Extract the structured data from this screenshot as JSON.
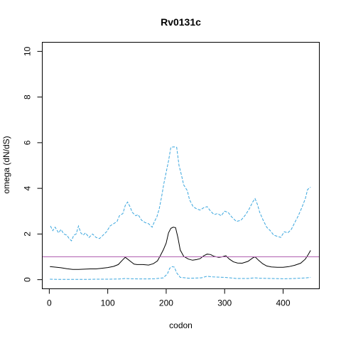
{
  "chart_data": {
    "type": "line",
    "title": "Rv0131c",
    "xlabel": "codon",
    "ylabel": "omega (dN/dS)",
    "xlim": [
      -12,
      462
    ],
    "ylim": [
      -0.4,
      10.4
    ],
    "x_ticks": [
      0,
      100,
      200,
      300,
      400
    ],
    "y_ticks": [
      0,
      2,
      4,
      6,
      8,
      10
    ],
    "grid": false,
    "reference_line": {
      "y": 1,
      "color": "#b05fb0"
    },
    "series": [
      {
        "role": "estimate",
        "color": "#000000",
        "dash": "solid",
        "points": [
          [
            1,
            0.57
          ],
          [
            10,
            0.55
          ],
          [
            20,
            0.52
          ],
          [
            30,
            0.48
          ],
          [
            40,
            0.45
          ],
          [
            50,
            0.45
          ],
          [
            60,
            0.46
          ],
          [
            70,
            0.47
          ],
          [
            80,
            0.47
          ],
          [
            90,
            0.5
          ],
          [
            100,
            0.53
          ],
          [
            110,
            0.58
          ],
          [
            118,
            0.66
          ],
          [
            125,
            0.85
          ],
          [
            130,
            0.98
          ],
          [
            134,
            0.9
          ],
          [
            140,
            0.78
          ],
          [
            145,
            0.68
          ],
          [
            150,
            0.66
          ],
          [
            160,
            0.66
          ],
          [
            170,
            0.64
          ],
          [
            178,
            0.7
          ],
          [
            185,
            0.82
          ],
          [
            190,
            1.05
          ],
          [
            195,
            1.3
          ],
          [
            200,
            1.6
          ],
          [
            204,
            2.05
          ],
          [
            208,
            2.25
          ],
          [
            212,
            2.3
          ],
          [
            216,
            2.28
          ],
          [
            220,
            1.85
          ],
          [
            224,
            1.3
          ],
          [
            230,
            1.02
          ],
          [
            238,
            0.9
          ],
          [
            245,
            0.85
          ],
          [
            252,
            0.88
          ],
          [
            258,
            0.92
          ],
          [
            264,
            1.04
          ],
          [
            270,
            1.12
          ],
          [
            276,
            1.1
          ],
          [
            282,
            1.02
          ],
          [
            290,
            0.98
          ],
          [
            296,
            1.0
          ],
          [
            302,
            1.05
          ],
          [
            308,
            0.9
          ],
          [
            315,
            0.78
          ],
          [
            322,
            0.73
          ],
          [
            330,
            0.72
          ],
          [
            340,
            0.8
          ],
          [
            348,
            0.95
          ],
          [
            352,
            1.0
          ],
          [
            358,
            0.85
          ],
          [
            365,
            0.7
          ],
          [
            372,
            0.6
          ],
          [
            380,
            0.56
          ],
          [
            390,
            0.54
          ],
          [
            400,
            0.54
          ],
          [
            410,
            0.57
          ],
          [
            420,
            0.63
          ],
          [
            430,
            0.72
          ],
          [
            438,
            0.9
          ],
          [
            443,
            1.1
          ],
          [
            447,
            1.28
          ]
        ]
      },
      {
        "role": "upper",
        "color": "#3aa6de",
        "dash": "dashed",
        "points": [
          [
            2,
            2.35
          ],
          [
            6,
            2.15
          ],
          [
            10,
            2.3
          ],
          [
            16,
            2.05
          ],
          [
            20,
            2.2
          ],
          [
            25,
            2.0
          ],
          [
            30,
            1.95
          ],
          [
            34,
            1.8
          ],
          [
            38,
            1.7
          ],
          [
            42,
            1.95
          ],
          [
            46,
            2.0
          ],
          [
            50,
            2.35
          ],
          [
            54,
            2.05
          ],
          [
            58,
            1.95
          ],
          [
            62,
            2.05
          ],
          [
            68,
            1.85
          ],
          [
            74,
            2.0
          ],
          [
            80,
            1.85
          ],
          [
            86,
            1.8
          ],
          [
            92,
            1.95
          ],
          [
            98,
            2.1
          ],
          [
            104,
            2.35
          ],
          [
            110,
            2.45
          ],
          [
            116,
            2.55
          ],
          [
            120,
            2.8
          ],
          [
            126,
            2.9
          ],
          [
            130,
            3.25
          ],
          [
            134,
            3.4
          ],
          [
            138,
            3.2
          ],
          [
            142,
            2.95
          ],
          [
            148,
            2.8
          ],
          [
            152,
            2.85
          ],
          [
            158,
            2.6
          ],
          [
            164,
            2.5
          ],
          [
            170,
            2.45
          ],
          [
            176,
            2.3
          ],
          [
            180,
            2.55
          ],
          [
            184,
            2.75
          ],
          [
            188,
            3.1
          ],
          [
            192,
            3.6
          ],
          [
            196,
            4.2
          ],
          [
            200,
            4.7
          ],
          [
            204,
            5.2
          ],
          [
            208,
            5.8
          ],
          [
            213,
            5.82
          ],
          [
            218,
            5.8
          ],
          [
            222,
            5.0
          ],
          [
            226,
            4.6
          ],
          [
            230,
            4.15
          ],
          [
            236,
            3.9
          ],
          [
            240,
            3.5
          ],
          [
            246,
            3.2
          ],
          [
            252,
            3.1
          ],
          [
            258,
            3.05
          ],
          [
            264,
            3.15
          ],
          [
            270,
            3.2
          ],
          [
            276,
            3.0
          ],
          [
            282,
            2.85
          ],
          [
            288,
            2.9
          ],
          [
            294,
            2.8
          ],
          [
            300,
            3.0
          ],
          [
            306,
            2.95
          ],
          [
            312,
            2.75
          ],
          [
            320,
            2.55
          ],
          [
            328,
            2.6
          ],
          [
            336,
            2.85
          ],
          [
            342,
            3.1
          ],
          [
            348,
            3.4
          ],
          [
            352,
            3.55
          ],
          [
            356,
            3.3
          ],
          [
            360,
            2.95
          ],
          [
            366,
            2.6
          ],
          [
            372,
            2.3
          ],
          [
            378,
            2.15
          ],
          [
            384,
            1.95
          ],
          [
            390,
            1.9
          ],
          [
            396,
            1.85
          ],
          [
            402,
            2.1
          ],
          [
            408,
            2.05
          ],
          [
            414,
            2.2
          ],
          [
            420,
            2.5
          ],
          [
            426,
            2.8
          ],
          [
            432,
            3.15
          ],
          [
            438,
            3.55
          ],
          [
            442,
            3.95
          ],
          [
            447,
            4.05
          ]
        ]
      },
      {
        "role": "lower",
        "color": "#3aa6de",
        "dash": "dashed",
        "points": [
          [
            1,
            0.02
          ],
          [
            20,
            0.01
          ],
          [
            40,
            0.01
          ],
          [
            60,
            0.01
          ],
          [
            80,
            0.02
          ],
          [
            100,
            0.02
          ],
          [
            120,
            0.03
          ],
          [
            130,
            0.05
          ],
          [
            140,
            0.04
          ],
          [
            160,
            0.03
          ],
          [
            180,
            0.04
          ],
          [
            195,
            0.08
          ],
          [
            202,
            0.25
          ],
          [
            206,
            0.5
          ],
          [
            210,
            0.57
          ],
          [
            214,
            0.55
          ],
          [
            218,
            0.3
          ],
          [
            224,
            0.1
          ],
          [
            240,
            0.06
          ],
          [
            260,
            0.08
          ],
          [
            270,
            0.15
          ],
          [
            280,
            0.12
          ],
          [
            300,
            0.1
          ],
          [
            320,
            0.05
          ],
          [
            340,
            0.05
          ],
          [
            352,
            0.08
          ],
          [
            360,
            0.06
          ],
          [
            380,
            0.05
          ],
          [
            400,
            0.04
          ],
          [
            420,
            0.05
          ],
          [
            440,
            0.08
          ],
          [
            447,
            0.1
          ]
        ]
      }
    ]
  }
}
